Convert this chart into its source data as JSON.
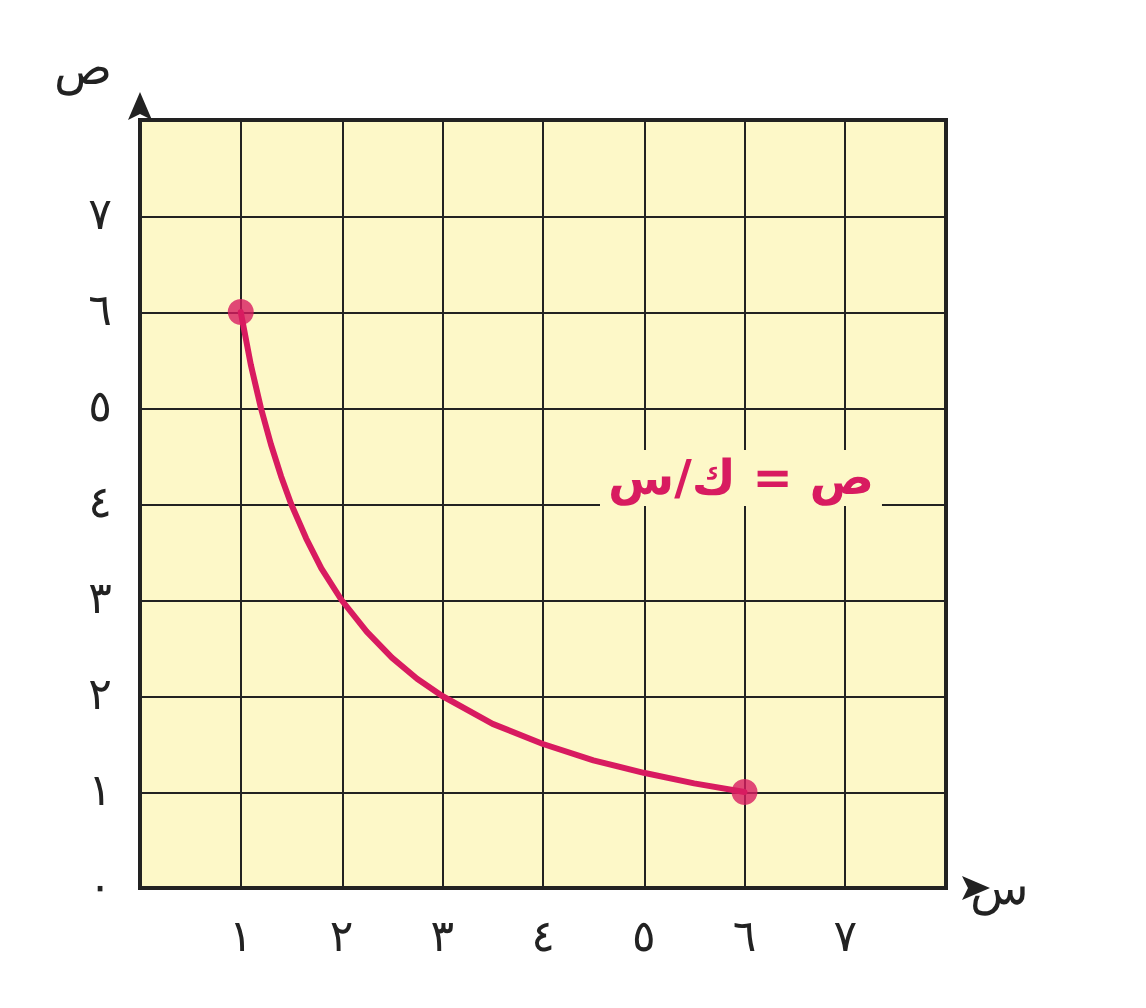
{
  "chart_data": {
    "type": "line",
    "xlabel": "س",
    "ylabel": "ص",
    "xlim": [
      0,
      8
    ],
    "ylim": [
      0,
      8
    ],
    "xticks": [
      {
        "value": 1,
        "label": "١"
      },
      {
        "value": 2,
        "label": "٢"
      },
      {
        "value": 3,
        "label": "٣"
      },
      {
        "value": 4,
        "label": "٤"
      },
      {
        "value": 5,
        "label": "٥"
      },
      {
        "value": 6,
        "label": "٦"
      },
      {
        "value": 7,
        "label": "٧"
      }
    ],
    "yticks": [
      {
        "value": 0,
        "label": "٠"
      },
      {
        "value": 1,
        "label": "١"
      },
      {
        "value": 2,
        "label": "٢"
      },
      {
        "value": 3,
        "label": "٣"
      },
      {
        "value": 4,
        "label": "٤"
      },
      {
        "value": 5,
        "label": "٥"
      },
      {
        "value": 6,
        "label": "٦"
      },
      {
        "value": 7,
        "label": "٧"
      }
    ],
    "grid": true,
    "series": [
      {
        "type": "line",
        "color": "#d81b60",
        "marker": "none",
        "x": [
          1,
          1.1,
          1.2,
          1.3,
          1.4,
          1.5,
          1.65,
          1.8,
          2,
          2.25,
          2.5,
          2.75,
          3,
          3.5,
          4,
          4.5,
          5,
          5.5,
          6
        ],
        "values": [
          6,
          5.45,
          5,
          4.62,
          4.29,
          4,
          3.64,
          3.33,
          3,
          2.67,
          2.4,
          2.18,
          2,
          1.71,
          1.5,
          1.33,
          1.2,
          1.09,
          1
        ]
      },
      {
        "type": "scatter",
        "color": "#d81b60",
        "marker": "circle",
        "x": [
          1,
          6
        ],
        "values": [
          6,
          1
        ]
      }
    ],
    "annotations": [
      "ص = ك/س"
    ]
  }
}
